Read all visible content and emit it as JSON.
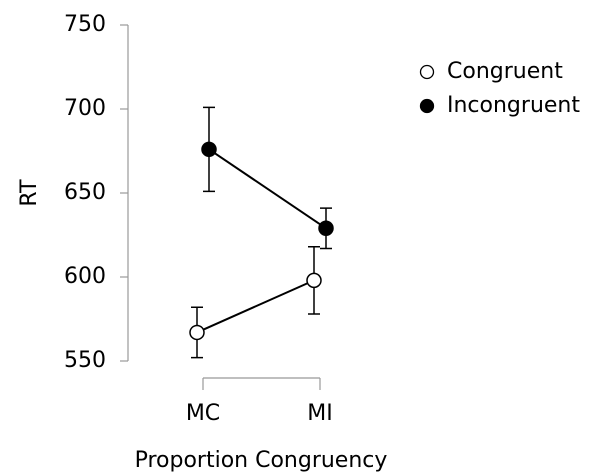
{
  "chart_data": {
    "type": "line",
    "x_label": "Proportion Congruency",
    "y_label": "RT",
    "categories": [
      "MC",
      "MI"
    ],
    "series": [
      {
        "name": "Congruent",
        "color": "#ffffff",
        "values": [
          567,
          598
        ],
        "errors": [
          15,
          20
        ]
      },
      {
        "name": "Incongruent",
        "color": "#000000",
        "values": [
          676,
          629
        ],
        "errors": [
          25,
          12
        ]
      }
    ],
    "ylim": [
      550,
      750
    ],
    "yticks": [
      550,
      600,
      650,
      700,
      750
    ],
    "legend": "upper right",
    "grid": false
  }
}
